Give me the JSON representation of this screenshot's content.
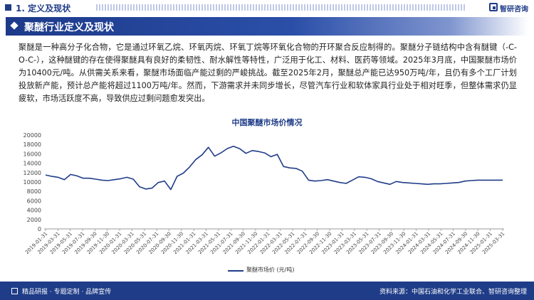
{
  "header": {
    "section_title": "1. 定义及现状",
    "logo_text": "智研咨询"
  },
  "banner": {
    "title": "聚醚行业定义及现状"
  },
  "body_text": "聚醚是一种高分子化合物，它是通过环氧乙烷、环氧丙烷、环氧丁烷等环氧化合物的开环聚合反应制得的。聚醚分子链结构中含有醚键（-C-O-C-），这种醚键的存在使得聚醚具有良好的柔韧性、耐水解性等特性，广泛用于化工、材料、医药等领域。2025年3月底，中国聚醚市场价为10400元/吨。从供需关系来看，聚醚市场面临产能过剩的严峻挑战。截至2025年2月，聚醚总产能已达950万吨/年，且仍有多个工厂计划投放新产能，预计总产能将超过1100万吨/年。然而，下游需求并未同步增长，尽管汽车行业和软体家具行业处于相对旺季，但整体需求仍显疲软，市场活跃度不高，导致供应过剩问题愈发突出。",
  "chart_data": {
    "type": "line",
    "title": "中国聚醚市场价情况",
    "xlabel": "",
    "ylabel": "",
    "ylim": [
      0,
      20000
    ],
    "yticks": [
      0,
      2000,
      4000,
      6000,
      8000,
      10000,
      12000,
      14000,
      16000,
      18000,
      20000
    ],
    "legend_position": "bottom",
    "grid": false,
    "x_tick_labels": [
      "2019-01-31",
      "2019-03-31",
      "2019-05-31",
      "2019-07-31",
      "2019-09-30",
      "2019-11-30",
      "2020-01-31",
      "2020-03-31",
      "2020-05-31",
      "2020-07-31",
      "2020-09-30",
      "2020-11-30",
      "2021-01-31",
      "2021-03-31",
      "2021-05-31",
      "2021-07-31",
      "2021-09-30",
      "2021-11-30",
      "2022-01-31",
      "2022-03-31",
      "2022-05-31",
      "2022-07-31",
      "2022-09-30",
      "2022-11-30",
      "2023-01-31",
      "2023-03-31",
      "2023-05-31",
      "2023-07-31",
      "2023-09-30",
      "2023-11-30",
      "2024-01-31",
      "2024-03-31",
      "2024-05-31",
      "2024-07-31",
      "2024-09-30",
      "2024-11-30",
      "2025-01-31",
      "2025-03-31"
    ],
    "series": [
      {
        "name": "聚醚市场价 (元/吨)",
        "color": "#1f3c88",
        "values": [
          11500,
          11200,
          11000,
          10500,
          11600,
          11300,
          10800,
          10800,
          10600,
          10400,
          10300,
          10500,
          10700,
          11000,
          10600,
          9000,
          8500,
          8700,
          9900,
          10200,
          8400,
          11200,
          11900,
          13200,
          14800,
          15800,
          17400,
          15500,
          16200,
          17100,
          17600,
          17100,
          16100,
          16700,
          16500,
          16200,
          15400,
          15900,
          13300,
          13000,
          12900,
          12300,
          10400,
          10200,
          10300,
          10500,
          10200,
          9900,
          9700,
          10400,
          11100,
          11000,
          10700,
          10100,
          9800,
          9500,
          10100,
          9900,
          9800,
          9700,
          9600,
          9500,
          9600,
          9600,
          9700,
          9800,
          9900,
          10200,
          10300,
          10400,
          10400,
          10400,
          10400,
          10400
        ]
      }
    ]
  },
  "footer": {
    "left_text": "精品研报 · 专题定制 · 品牌宣传",
    "source_text": "资料来源：中国石油和化学工业联合、智研咨询整理"
  }
}
